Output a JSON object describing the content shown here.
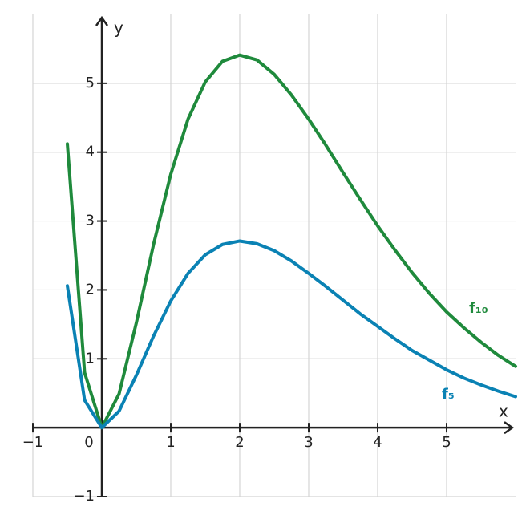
{
  "chart_data": {
    "type": "line",
    "xlabel": "x",
    "ylabel": "y",
    "x": [
      -0.5,
      -0.25,
      0,
      0.25,
      0.5,
      0.75,
      1,
      1.25,
      1.5,
      1.75,
      2,
      2.25,
      2.5,
      2.75,
      3,
      3.25,
      3.5,
      3.75,
      4,
      4.25,
      4.5,
      4.75,
      5,
      5.25,
      5.5,
      5.75,
      6
    ],
    "series": [
      {
        "name": "f₁₀",
        "color": "#1f8a3c",
        "values": [
          4.12,
          0.8,
          0,
          0.49,
          1.52,
          2.66,
          3.68,
          4.48,
          5.02,
          5.32,
          5.41,
          5.34,
          5.13,
          4.83,
          4.48,
          4.1,
          3.7,
          3.31,
          2.93,
          2.58,
          2.25,
          1.95,
          1.68,
          1.45,
          1.24,
          1.05,
          0.89
        ]
      },
      {
        "name": "f₅",
        "color": "#0a82b4",
        "values": [
          2.06,
          0.4,
          0,
          0.24,
          0.76,
          1.33,
          1.84,
          2.24,
          2.51,
          2.66,
          2.71,
          2.67,
          2.57,
          2.42,
          2.24,
          2.05,
          1.85,
          1.65,
          1.47,
          1.29,
          1.12,
          0.98,
          0.84,
          0.72,
          0.62,
          0.53,
          0.45
        ]
      }
    ],
    "xlim": [
      -1,
      6
    ],
    "ylim": [
      -1,
      6
    ],
    "xticks": [
      {
        "value": -1,
        "label": "−1"
      },
      0,
      1,
      2,
      3,
      4,
      5
    ],
    "yticks": [
      {
        "value": -1,
        "label": "−1"
      },
      1,
      2,
      3,
      4,
      5
    ],
    "grid": true
  }
}
